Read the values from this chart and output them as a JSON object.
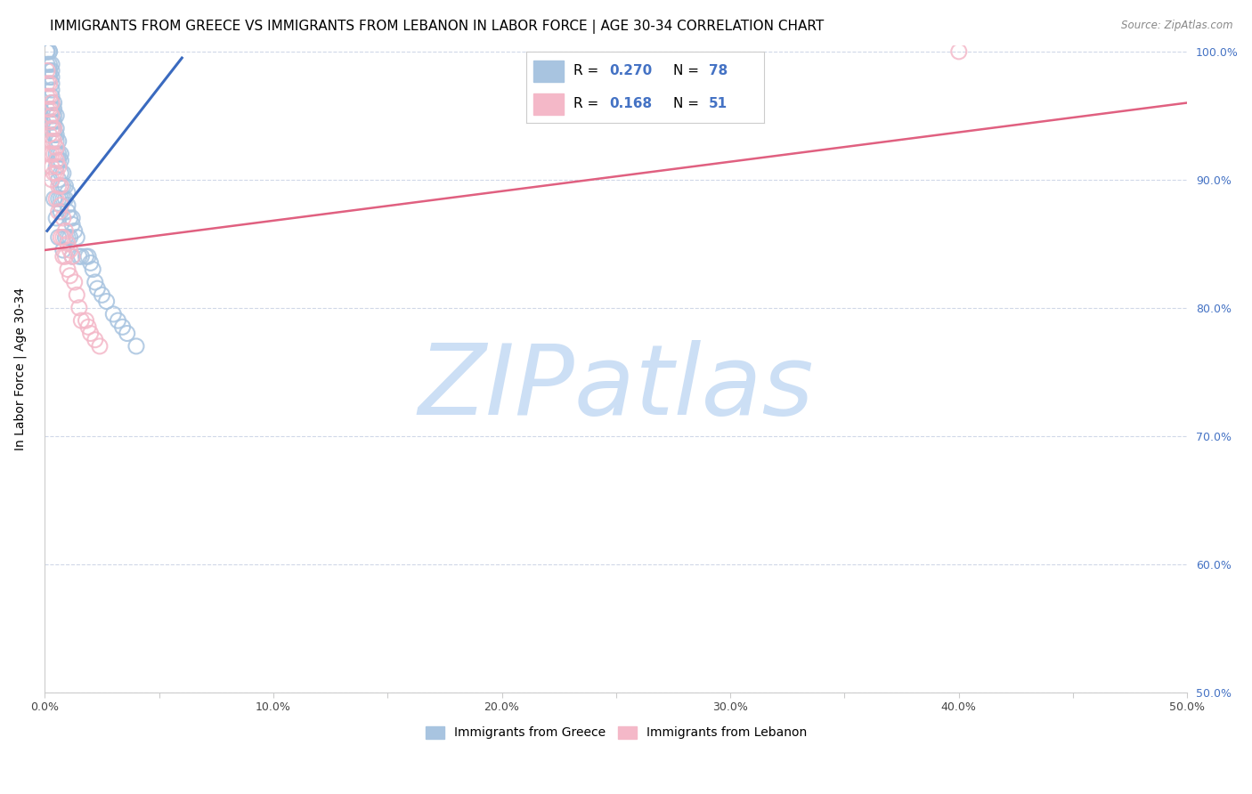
{
  "title": "IMMIGRANTS FROM GREECE VS IMMIGRANTS FROM LEBANON IN LABOR FORCE | AGE 30-34 CORRELATION CHART",
  "source": "Source: ZipAtlas.com",
  "ylabel": "In Labor Force | Age 30-34",
  "xlim": [
    0.0,
    0.5
  ],
  "ylim": [
    0.5,
    1.005
  ],
  "xticks": [
    0.0,
    0.05,
    0.1,
    0.15,
    0.2,
    0.25,
    0.3,
    0.35,
    0.4,
    0.45,
    0.5
  ],
  "xticklabels": [
    "0.0%",
    "",
    "10.0%",
    "",
    "20.0%",
    "",
    "30.0%",
    "",
    "40.0%",
    "",
    "50.0%"
  ],
  "yticks": [
    0.5,
    0.6,
    0.7,
    0.8,
    0.9,
    1.0
  ],
  "right_yticklabels": [
    "50.0%",
    "60.0%",
    "70.0%",
    "80.0%",
    "90.0%",
    "100.0%"
  ],
  "greece_R": "0.270",
  "greece_N": "78",
  "lebanon_R": "0.168",
  "lebanon_N": "51",
  "greece_color": "#a8c4e0",
  "lebanon_color": "#f4b8c8",
  "greece_line_color": "#3a6abf",
  "lebanon_line_color": "#e06080",
  "watermark_zip": "ZIP",
  "watermark_atlas": "atlas",
  "watermark_color": "#ccdff5",
  "greece_x": [
    0.001,
    0.001,
    0.001,
    0.001,
    0.002,
    0.002,
    0.002,
    0.002,
    0.002,
    0.003,
    0.003,
    0.003,
    0.003,
    0.003,
    0.003,
    0.003,
    0.003,
    0.003,
    0.003,
    0.004,
    0.004,
    0.004,
    0.004,
    0.004,
    0.004,
    0.004,
    0.005,
    0.005,
    0.005,
    0.005,
    0.005,
    0.005,
    0.005,
    0.006,
    0.006,
    0.006,
    0.006,
    0.006,
    0.006,
    0.007,
    0.007,
    0.007,
    0.007,
    0.007,
    0.007,
    0.008,
    0.008,
    0.008,
    0.008,
    0.009,
    0.009,
    0.009,
    0.01,
    0.01,
    0.01,
    0.01,
    0.011,
    0.011,
    0.012,
    0.012,
    0.012,
    0.013,
    0.014,
    0.015,
    0.016,
    0.018,
    0.019,
    0.02,
    0.021,
    0.022,
    0.023,
    0.025,
    0.027,
    0.03,
    0.032,
    0.034,
    0.036,
    0.04
  ],
  "greece_y": [
    1.0,
    1.0,
    1.0,
    0.99,
    1.0,
    1.0,
    0.99,
    0.985,
    0.98,
    0.99,
    0.985,
    0.98,
    0.975,
    0.97,
    0.965,
    0.96,
    0.955,
    0.95,
    0.945,
    0.96,
    0.955,
    0.95,
    0.945,
    0.94,
    0.935,
    0.885,
    0.95,
    0.94,
    0.935,
    0.93,
    0.92,
    0.91,
    0.87,
    0.93,
    0.92,
    0.915,
    0.9,
    0.885,
    0.855,
    0.92,
    0.915,
    0.905,
    0.895,
    0.885,
    0.875,
    0.905,
    0.895,
    0.885,
    0.845,
    0.895,
    0.885,
    0.855,
    0.89,
    0.88,
    0.875,
    0.855,
    0.87,
    0.855,
    0.87,
    0.865,
    0.84,
    0.86,
    0.855,
    0.84,
    0.84,
    0.84,
    0.84,
    0.835,
    0.83,
    0.82,
    0.815,
    0.81,
    0.805,
    0.795,
    0.79,
    0.785,
    0.78,
    0.77
  ],
  "lebanon_x": [
    0.001,
    0.001,
    0.001,
    0.001,
    0.002,
    0.002,
    0.002,
    0.002,
    0.002,
    0.002,
    0.003,
    0.003,
    0.003,
    0.003,
    0.003,
    0.003,
    0.003,
    0.004,
    0.004,
    0.004,
    0.004,
    0.005,
    0.005,
    0.005,
    0.005,
    0.006,
    0.006,
    0.006,
    0.007,
    0.007,
    0.007,
    0.008,
    0.008,
    0.008,
    0.009,
    0.009,
    0.01,
    0.01,
    0.011,
    0.011,
    0.012,
    0.013,
    0.014,
    0.015,
    0.016,
    0.018,
    0.019,
    0.02,
    0.022,
    0.024,
    0.4
  ],
  "lebanon_y": [
    0.985,
    0.975,
    0.965,
    0.955,
    0.975,
    0.965,
    0.955,
    0.945,
    0.935,
    0.92,
    0.96,
    0.95,
    0.94,
    0.93,
    0.92,
    0.91,
    0.9,
    0.94,
    0.93,
    0.92,
    0.905,
    0.925,
    0.915,
    0.905,
    0.885,
    0.91,
    0.895,
    0.875,
    0.895,
    0.88,
    0.855,
    0.87,
    0.855,
    0.84,
    0.86,
    0.84,
    0.85,
    0.83,
    0.845,
    0.825,
    0.84,
    0.82,
    0.81,
    0.8,
    0.79,
    0.79,
    0.785,
    0.78,
    0.775,
    0.77,
    1.0
  ],
  "greece_trend_x": [
    0.001,
    0.06
  ],
  "greece_trend_y": [
    0.86,
    0.995
  ],
  "lebanon_trend_x": [
    0.0,
    0.5
  ],
  "lebanon_trend_y": [
    0.845,
    0.96
  ],
  "background_color": "#ffffff",
  "grid_color": "#d0d8e8",
  "title_fontsize": 11,
  "axis_label_fontsize": 10,
  "tick_fontsize": 9,
  "right_ytick_color": "#4472c4"
}
